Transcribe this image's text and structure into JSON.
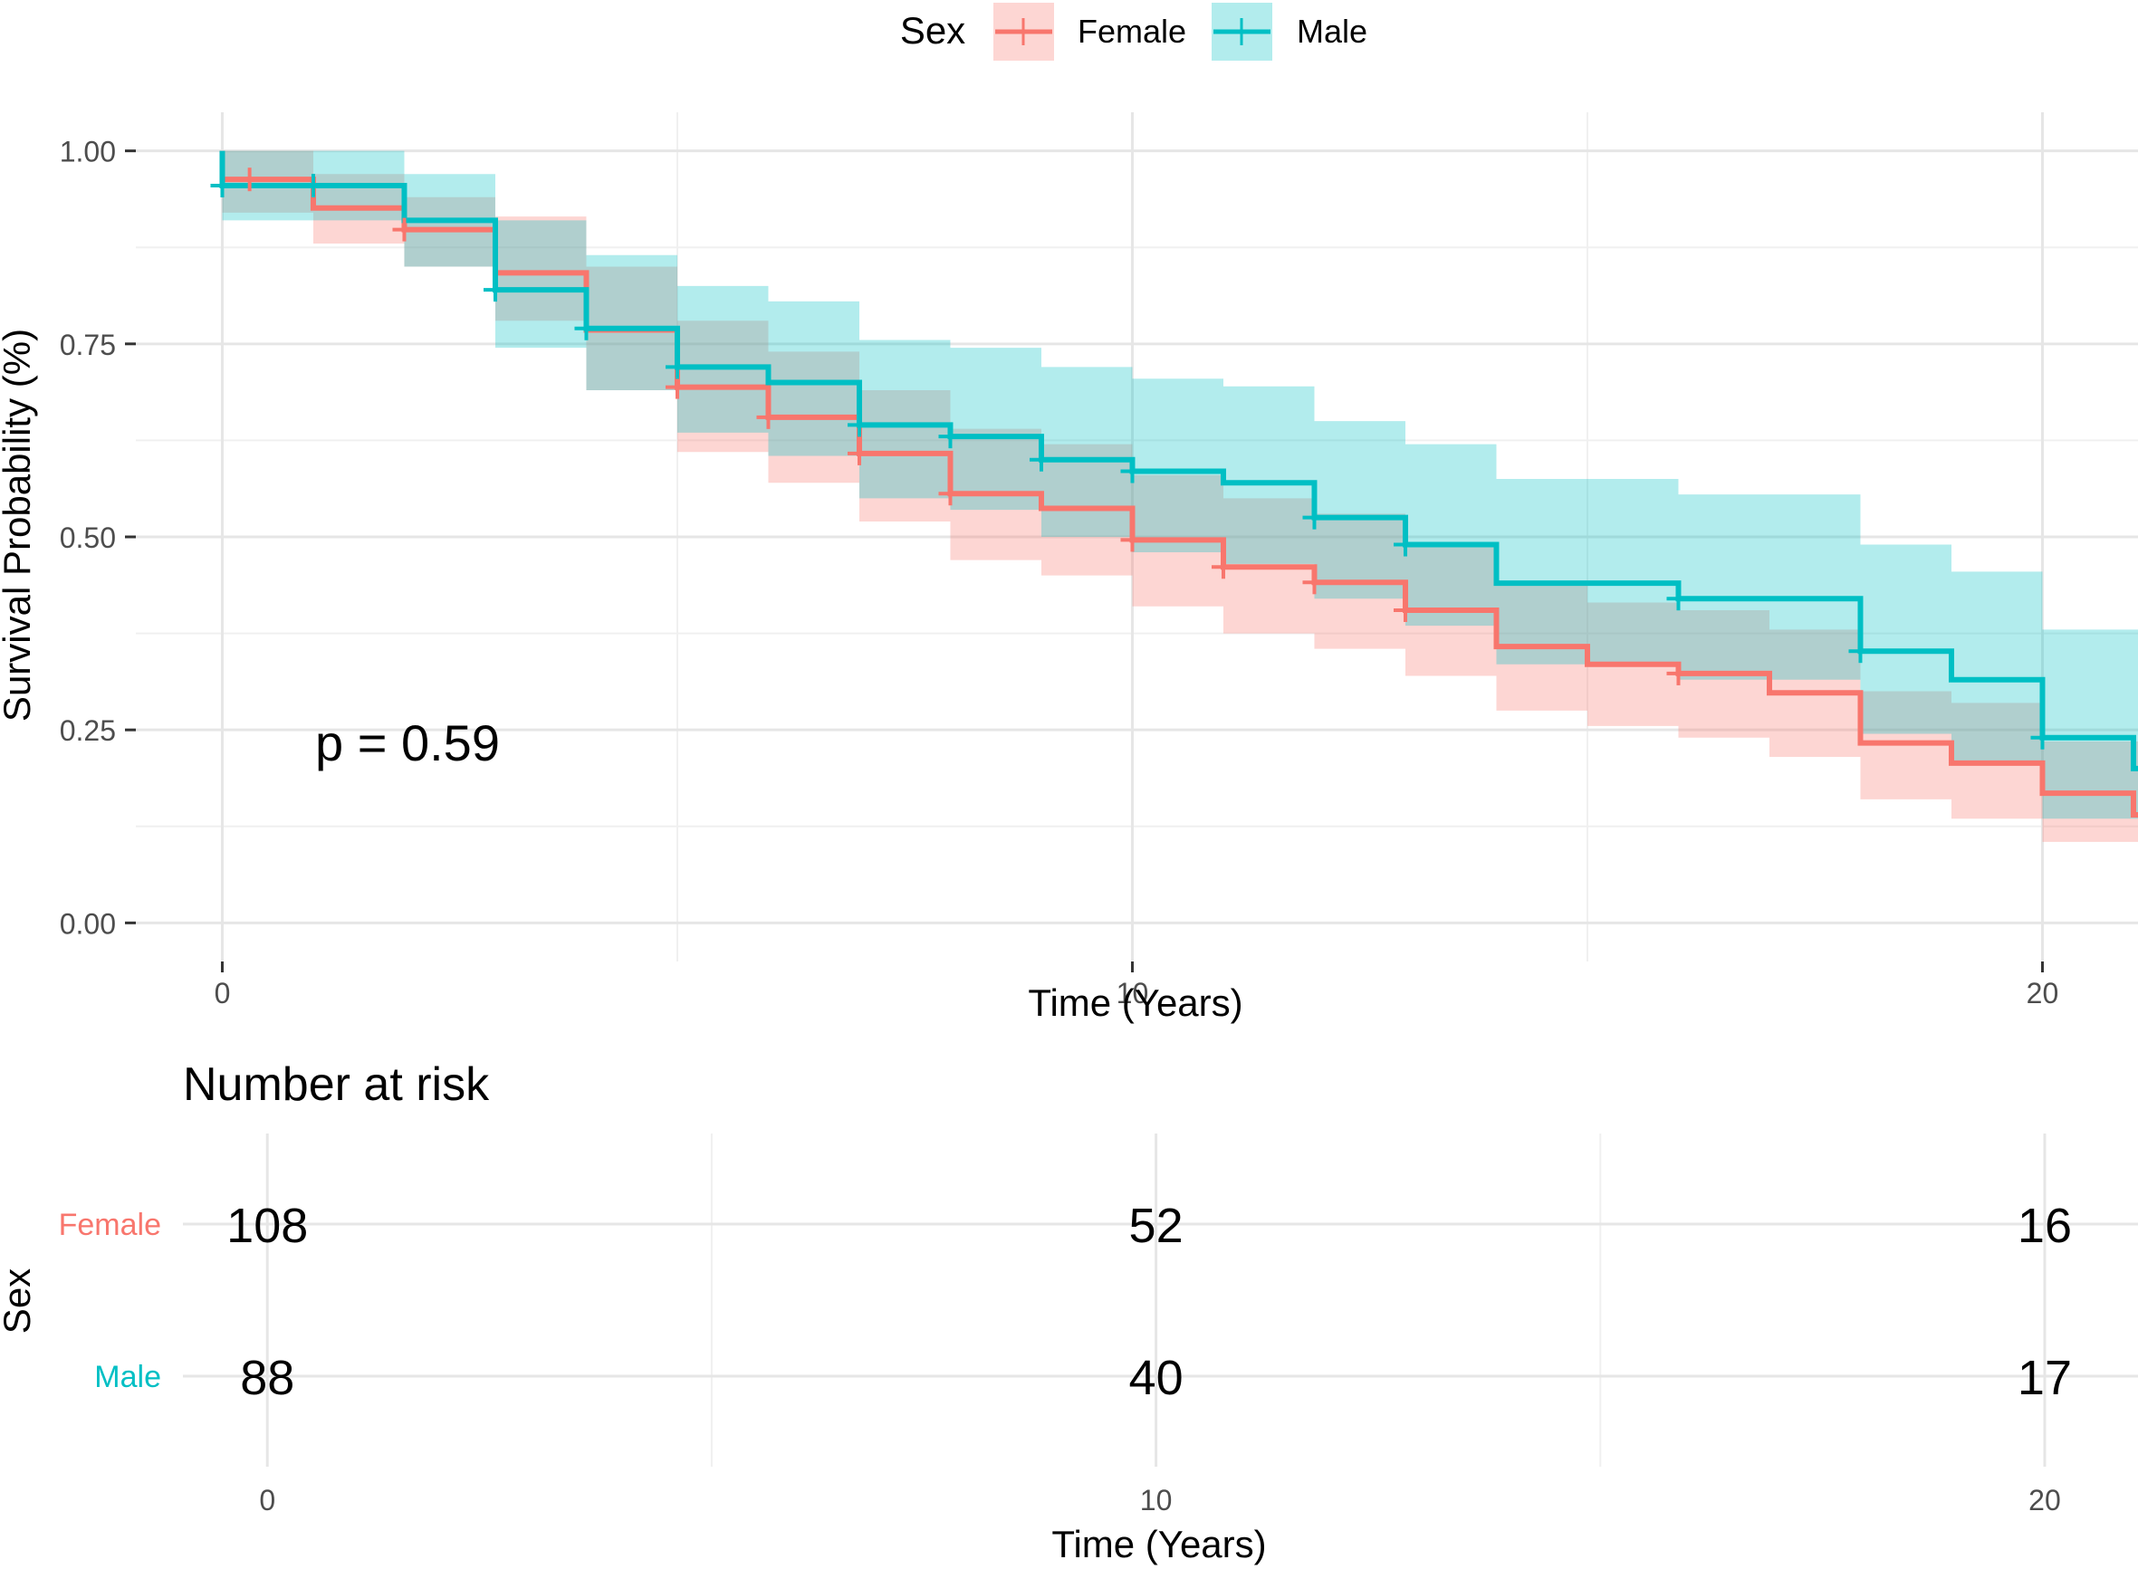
{
  "legend": {
    "title": "Sex",
    "items": [
      {
        "label": "Female",
        "color": "#F8766D"
      },
      {
        "label": "Male",
        "color": "#00BFC4"
      }
    ]
  },
  "colors": {
    "female": "#F8766D",
    "male": "#00BFC4",
    "grid_major": "#e6e6e6",
    "grid_minor": "#f0f0f0",
    "tick_text": "#4d4d4d",
    "title_text": "#000000"
  },
  "chart_data": [
    {
      "type": "line",
      "subtype": "kaplan-meier-step",
      "ylabel": "Survival Probability (%)",
      "xlabel": "Time (Years)",
      "xlim": [
        -0.95,
        21.05
      ],
      "ylim": [
        -0.05,
        1.05
      ],
      "x_ticks": [
        0,
        10,
        20
      ],
      "x_tick_labels": [
        "0",
        "10",
        "20"
      ],
      "x_minor_ticks": [
        5,
        15
      ],
      "y_ticks": [
        0,
        0.25,
        0.5,
        0.75,
        1.0
      ],
      "y_tick_labels": [
        "0.00",
        "0.25",
        "0.50",
        "0.75",
        "1.00"
      ],
      "y_minor_ticks": [
        0.125,
        0.375,
        0.625,
        0.875
      ],
      "annotation": "p = 0.59",
      "series": [
        {
          "name": "Female",
          "times": [
            0,
            1,
            2,
            3,
            4,
            5,
            6,
            7,
            8,
            9,
            10,
            11,
            12,
            13,
            14,
            15,
            16,
            17,
            18,
            19,
            20,
            21
          ],
          "surv": [
            0.963,
            0.926,
            0.898,
            0.842,
            0.768,
            0.694,
            0.655,
            0.608,
            0.556,
            0.537,
            0.496,
            0.461,
            0.441,
            0.405,
            0.358,
            0.335,
            0.323,
            0.298,
            0.233,
            0.207,
            0.168,
            0.14
          ],
          "lower": [
            0.92,
            0.88,
            0.85,
            0.78,
            0.69,
            0.61,
            0.57,
            0.52,
            0.47,
            0.45,
            0.41,
            0.375,
            0.355,
            0.32,
            0.275,
            0.255,
            0.24,
            0.215,
            0.16,
            0.135,
            0.105,
            0.105
          ],
          "upper": [
            1.0,
            0.97,
            0.94,
            0.915,
            0.85,
            0.78,
            0.74,
            0.69,
            0.64,
            0.62,
            0.58,
            0.55,
            0.53,
            0.49,
            0.44,
            0.415,
            0.405,
            0.38,
            0.3,
            0.285,
            0.235,
            0.235
          ],
          "censor_times": [
            0.3,
            2.0,
            5.0,
            6.0,
            7.0,
            8.0,
            10.0,
            11.0,
            12.0,
            13.0,
            16.0
          ]
        },
        {
          "name": "Male",
          "times": [
            0,
            1,
            2,
            3,
            4,
            5,
            6,
            7,
            8,
            9,
            10,
            11,
            12,
            13,
            14,
            15,
            16,
            17,
            18,
            19,
            20,
            21
          ],
          "surv": [
            0.955,
            0.955,
            0.91,
            0.82,
            0.77,
            0.72,
            0.7,
            0.645,
            0.63,
            0.6,
            0.585,
            0.57,
            0.525,
            0.49,
            0.44,
            0.44,
            0.42,
            0.42,
            0.352,
            0.315,
            0.24,
            0.2
          ],
          "lower": [
            0.91,
            0.91,
            0.85,
            0.745,
            0.69,
            0.635,
            0.605,
            0.55,
            0.535,
            0.5,
            0.48,
            0.465,
            0.42,
            0.385,
            0.335,
            0.335,
            0.315,
            0.315,
            0.245,
            0.21,
            0.135,
            0.135
          ],
          "upper": [
            1.0,
            1.0,
            0.97,
            0.91,
            0.865,
            0.825,
            0.805,
            0.755,
            0.745,
            0.72,
            0.705,
            0.695,
            0.65,
            0.62,
            0.575,
            0.575,
            0.555,
            0.555,
            0.49,
            0.455,
            0.38,
            0.38
          ],
          "censor_times": [
            0,
            1.0,
            3.0,
            4.0,
            5.0,
            7.0,
            8.0,
            9.0,
            10.0,
            12.0,
            13.0,
            16.0,
            18.0,
            20.0
          ]
        }
      ]
    },
    {
      "type": "table",
      "title": "Number at risk",
      "ylabel": "Sex",
      "xlabel": "Time (Years)",
      "xlim": [
        -0.95,
        21.05
      ],
      "x_ticks": [
        0,
        10,
        20
      ],
      "x_tick_labels": [
        "0",
        "10",
        "20"
      ],
      "x_minor_ticks": [
        5,
        15
      ],
      "rows": [
        {
          "group": "Female",
          "color": "#F8766D",
          "times": [
            0,
            10,
            20
          ],
          "values": [
            "108",
            "52",
            "16"
          ]
        },
        {
          "group": "Male",
          "color": "#00BFC4",
          "times": [
            0,
            10,
            20
          ],
          "values": [
            "88",
            "40",
            "17"
          ]
        }
      ]
    }
  ]
}
